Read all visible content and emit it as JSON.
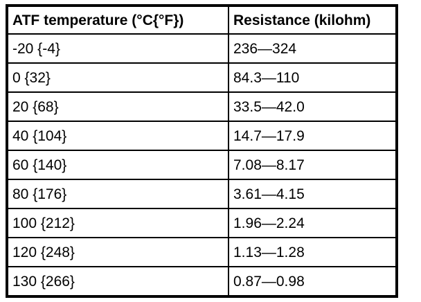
{
  "colors": {
    "text": "#000000",
    "border": "#000000",
    "background": "#ffffff"
  },
  "table": {
    "headers": [
      "ATF temperature (°C{°F})",
      "Resistance (kilohm)"
    ],
    "rows": [
      [
        "-20 {-4}",
        "236—324"
      ],
      [
        "0 {32}",
        "84.3—110"
      ],
      [
        "20 {68}",
        "33.5—42.0"
      ],
      [
        "40 {104}",
        "14.7—17.9"
      ],
      [
        "60 {140}",
        "7.08—8.17"
      ],
      [
        "80 {176}",
        "3.61—4.15"
      ],
      [
        "100 {212}",
        "1.96—2.24"
      ],
      [
        "120 {248}",
        "1.13—1.28"
      ],
      [
        "130 {266}",
        "0.87—0.98"
      ]
    ]
  }
}
